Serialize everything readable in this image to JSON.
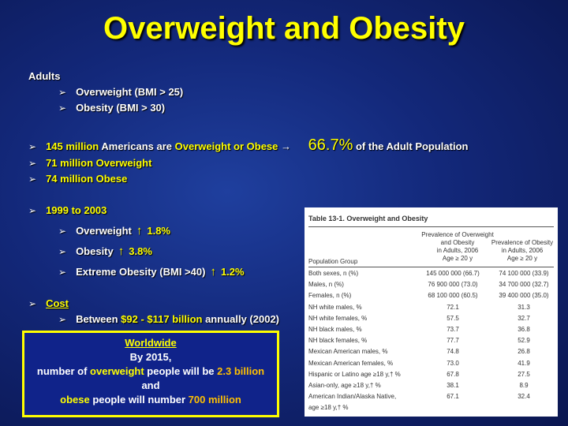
{
  "title": "Overweight and Obesity",
  "adults": {
    "heading": "Adults",
    "items": [
      "Overweight (BMI > 25)",
      "Obesity (BMI > 30)"
    ]
  },
  "stats": {
    "line1_prefix": "145 million",
    "line1_mid": " Americans are ",
    "line1_ow": "Overweight or Obese",
    "line1_arrow": "→",
    "line1_percent": "66.7%",
    "line1_suffix": "of the Adult Population",
    "line2": "71 million Overweight",
    "line3": "74 million Obese"
  },
  "trend": {
    "heading": "1999 to 2003",
    "items": [
      {
        "label": "Overweight",
        "arrow": "↑",
        "value": "1.8%"
      },
      {
        "label": "Obesity",
        "arrow": "↑",
        "value": "3.8%"
      },
      {
        "label": "Extreme Obesity (BMI >40)",
        "arrow": "↑",
        "value": "1.2%"
      }
    ]
  },
  "cost": {
    "heading": "Cost",
    "prefix": "Between ",
    "amount": "$92 - $117 billion",
    "suffix": " annually (2002)"
  },
  "worldwide": {
    "heading": "Worldwide",
    "line1": "By 2015,",
    "line2_a": "number of ",
    "line2_b": "overweight",
    "line2_c": " people will be ",
    "line2_d": "2.3 billion",
    "line3": "and",
    "line4_a": "obese",
    "line4_b": " people will number ",
    "line4_c": "700 million"
  },
  "table": {
    "title": "Table 13-1.   Overweight and Obesity",
    "col1_header": [
      "Prevalence of Overweight",
      "and Obesity",
      "in Adults, 2006",
      "Age ≥ 20 y"
    ],
    "col2_header": [
      "Prevalence of Obesity",
      "in Adults, 2006",
      "Age ≥ 20 y"
    ],
    "group_label": "Population Group",
    "rows": [
      {
        "label": "Both sexes, n (%)",
        "c1": "145 000 000 (66.7)",
        "c2": "74 100 000 (33.9)"
      },
      {
        "label": "Males, n (%)",
        "c1": "76 900 000 (73.0)",
        "c2": "34 700 000 (32.7)"
      },
      {
        "label": "Females, n (%)",
        "c1": "68 100 000 (60.5)",
        "c2": "39 400 000 (35.0)"
      },
      {
        "label": "NH white males, %",
        "c1": "72.1",
        "c2": "31.3"
      },
      {
        "label": "NH white females, %",
        "c1": "57.5",
        "c2": "32.7"
      },
      {
        "label": "NH black males, %",
        "c1": "73.7",
        "c2": "36.8"
      },
      {
        "label": "NH black females, %",
        "c1": "77.7",
        "c2": "52.9"
      },
      {
        "label": "Mexican American males, %",
        "c1": "74.8",
        "c2": "26.8"
      },
      {
        "label": "Mexican American females, %",
        "c1": "73.0",
        "c2": "41.9"
      },
      {
        "label": "Hispanic or Latino age ≥18 y,† %",
        "c1": "67.8",
        "c2": "27.5"
      },
      {
        "label": "Asian-only, age ≥18 y,† %",
        "c1": "38.1",
        "c2": "8.9"
      },
      {
        "label": "American Indian/Alaska Native,",
        "c1": "67.1",
        "c2": "32.4"
      },
      {
        "label": "age ≥18 y,† %",
        "c1": "",
        "c2": ""
      }
    ]
  },
  "colors": {
    "accent": "#ffff00",
    "highlight": "#ffc000",
    "background": "#13287a"
  }
}
